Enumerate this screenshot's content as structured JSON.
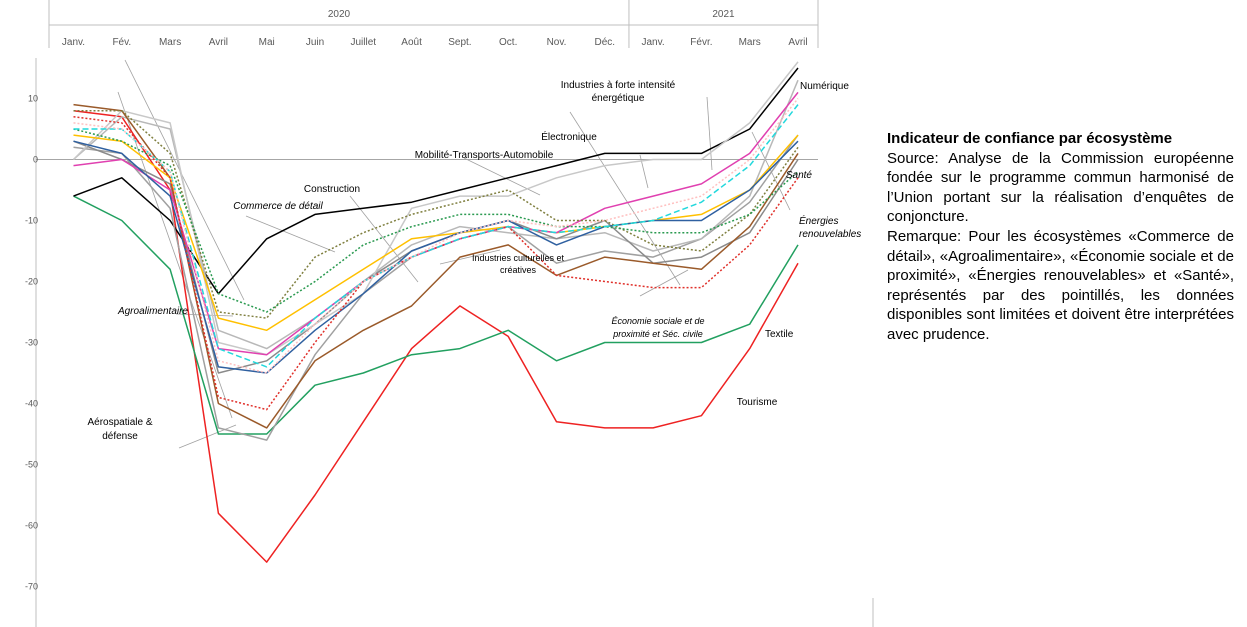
{
  "chart_data": {
    "type": "line",
    "title": "",
    "xlabel": "",
    "ylabel": "",
    "ylim": [
      -70,
      15
    ],
    "yticks": [
      10,
      0,
      -10,
      -20,
      -30,
      -40,
      -50,
      -60,
      -70
    ],
    "grid": false,
    "legend": "none (series labelled directly on the chart)",
    "years": [
      {
        "label": "2020",
        "span": [
          0,
          11
        ]
      },
      {
        "label": "2021",
        "span": [
          12,
          15
        ]
      }
    ],
    "categories": [
      "Janv.",
      "Fév.",
      "Mars",
      "Avril",
      "Mai",
      "Juin",
      "Juillet",
      "Août",
      "Sept.",
      "Oct.",
      "Nov.",
      "Déc.",
      "Janv.",
      "Févr.",
      "Mars",
      "Avril"
    ],
    "series": [
      {
        "name": "Tourisme",
        "color": "#ee2222",
        "dash": "solid",
        "values": [
          8,
          7,
          -5,
          -58,
          -66,
          -55,
          -43,
          -31,
          -24,
          -29,
          -43,
          -44,
          -44,
          -42,
          -31,
          -17
        ]
      },
      {
        "name": "Textile",
        "color": "#22a060",
        "dash": "solid",
        "values": [
          -6,
          -10,
          -18,
          -45,
          -45,
          -37,
          -35,
          -32,
          -31,
          -28,
          -33,
          -30,
          -30,
          -30,
          -27,
          -14
        ]
      },
      {
        "name": "Industries à forte intensité énergétique",
        "color": "#000000",
        "dash": "solid",
        "values": [
          -6,
          -3,
          -10,
          -22,
          -13,
          -9,
          -8,
          -7,
          -5,
          -3,
          -1,
          1,
          1,
          1,
          5,
          15
        ]
      },
      {
        "name": "Aérospatiale & défense",
        "color": "#a0a0a0",
        "dash": "solid",
        "values": [
          2,
          1,
          -8,
          -44,
          -46,
          -32,
          -22,
          -16,
          -13,
          -11,
          -17,
          -15,
          -16,
          -13,
          -7,
          4
        ]
      },
      {
        "name": "Numérique",
        "color": "#b8b8b8",
        "dash": "solid",
        "values": [
          0,
          7,
          5,
          -28,
          -31,
          -26,
          -20,
          -14,
          -11,
          -12,
          -13,
          -12,
          -15,
          -13,
          -6,
          13
        ]
      },
      {
        "name": "Électronique",
        "color": "#8a8a8a",
        "dash": "solid",
        "values": [
          3,
          0,
          -4,
          -35,
          -33,
          -27,
          -20,
          -15,
          -12,
          -10,
          -13,
          -10,
          -17,
          -16,
          -12,
          0
        ]
      },
      {
        "name": "Mobilité-Transports-Automobile",
        "color": "#c8c8c8",
        "dash": "solid",
        "values": [
          0,
          8,
          6,
          -30,
          -32,
          -27,
          -22,
          -8,
          -6,
          -6,
          -3,
          -1,
          0,
          0,
          6,
          16
        ]
      },
      {
        "name": "Industries culturelles et créatives",
        "color": "#9a5a2a",
        "dash": "solid",
        "values": [
          9,
          8,
          -3,
          -40,
          -44,
          -33,
          -28,
          -24,
          -16,
          -14,
          -19,
          -16,
          -17,
          -18,
          -11,
          1
        ]
      },
      {
        "name": "Construction",
        "color": "#ffc000",
        "dash": "solid",
        "values": [
          4,
          3,
          -3,
          -26,
          -28,
          -23,
          -18,
          -13,
          -12,
          -11,
          -12,
          -11,
          -10,
          -9,
          -5,
          4
        ]
      },
      {
        "name": "",
        "color": "#e040b0",
        "dash": "solid",
        "values": [
          -1,
          0,
          -5,
          -31,
          -32,
          -26,
          -20,
          -16,
          -13,
          -11,
          -12,
          -8,
          -6,
          -4,
          1,
          11
        ]
      },
      {
        "name": "",
        "color": "#2f60a0",
        "dash": "solid",
        "values": [
          3,
          1,
          -6,
          -34,
          -35,
          -28,
          -22,
          -15,
          -12,
          -10,
          -14,
          -11,
          -10,
          -10,
          -5,
          3
        ]
      },
      {
        "name": "Commerce de détail",
        "color": "#7f7f3f",
        "dash": "dotted",
        "values": [
          8,
          8,
          1,
          -25,
          -26,
          -16,
          -12,
          -9,
          -7,
          -5,
          -10,
          -10,
          -14,
          -15,
          -9,
          2
        ]
      },
      {
        "name": "Agroalimentaire",
        "color": "#2a9a50",
        "dash": "dotted",
        "values": [
          5,
          3,
          -1,
          -22,
          -25,
          -20,
          -14,
          -11,
          -9,
          -9,
          -11,
          -11,
          -12,
          -12,
          -9,
          -2
        ]
      },
      {
        "name": "Économie sociale et de proximité et Séc. civile",
        "color": "#e0302a",
        "dash": "dotted",
        "values": [
          7,
          6,
          -3,
          -39,
          -41,
          -30,
          -20,
          -16,
          -13,
          -11,
          -19,
          -20,
          -21,
          -21,
          -14,
          -3
        ]
      },
      {
        "name": "Énergies renouvelables",
        "color": "#22d8dc",
        "dash": "dashed",
        "values": [
          5,
          5,
          -2,
          -31,
          -34,
          -26,
          -20,
          -16,
          -13,
          -11,
          -12,
          -11,
          -10,
          -7,
          -1,
          9
        ]
      },
      {
        "name": "Santé",
        "color": "#ffc0c0",
        "dash": "dotted",
        "values": [
          6,
          5,
          -2,
          -33,
          -35,
          -27,
          -20,
          -16,
          -12,
          -10,
          -11,
          -10,
          -8,
          -6,
          0,
          10
        ]
      }
    ]
  },
  "annotations": [
    {
      "key": "energetique",
      "lines": [
        "Industries à forte intensité",
        "énergétique"
      ],
      "italic": false
    },
    {
      "key": "numerique",
      "lines": [
        "Numérique"
      ],
      "italic": false
    },
    {
      "key": "electronique",
      "lines": [
        "Électronique"
      ],
      "italic": false
    },
    {
      "key": "mobilite",
      "lines": [
        "Mobilité-Transports-Automobile"
      ],
      "italic": false
    },
    {
      "key": "construction",
      "lines": [
        "Construction"
      ],
      "italic": false
    },
    {
      "key": "commerce",
      "lines": [
        "Commerce de détail"
      ],
      "italic": true
    },
    {
      "key": "sante",
      "lines": [
        "Santé"
      ],
      "italic": true
    },
    {
      "key": "energies",
      "lines": [
        "Énergies",
        "renouvelables"
      ],
      "italic": true
    },
    {
      "key": "agro",
      "lines": [
        "Agroalimentaire"
      ],
      "italic": true
    },
    {
      "key": "culturelles",
      "lines": [
        "Industries culturelles et",
        "créatives"
      ],
      "italic": false
    },
    {
      "key": "economie",
      "lines": [
        "Économie sociale et de",
        "proximité et Séc. civile"
      ],
      "italic": true
    },
    {
      "key": "textile",
      "lines": [
        "Textile"
      ],
      "italic": false
    },
    {
      "key": "tourisme",
      "lines": [
        "Tourisme"
      ],
      "italic": false
    },
    {
      "key": "aero",
      "lines": [
        "Aérospatiale &",
        "défense"
      ],
      "italic": false
    }
  ],
  "side": {
    "title": "Indicateur de confiance par écosystème",
    "source": "Source: Analyse de la Commission européenne fondée sur le programme commun harmonisé de l’Union portant sur la réalisation d’enquêtes de conjoncture.",
    "remark": "Remarque: Pour les écosystèmes «Commerce de détail», «Agroalimentaire», «Économie sociale et de proximité», «Énergies renouvelables» et «Santé», représentés par des pointillés, les données disponibles sont limitées et doivent être interprétées avec prudence."
  }
}
